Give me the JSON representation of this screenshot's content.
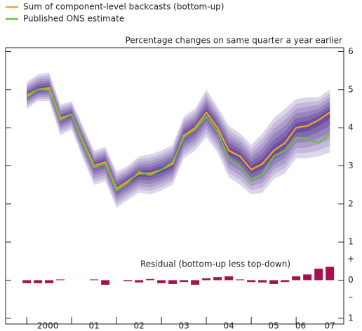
{
  "chart_data": {
    "type": "fan",
    "subtitle": "Percentage changes on same quarter a year earlier",
    "annotation": "Residual (bottom-up less top-down)",
    "x": [
      2000.0,
      2000.25,
      2000.5,
      2000.75,
      2001.0,
      2001.25,
      2001.5,
      2001.75,
      2002.0,
      2002.25,
      2002.5,
      2002.75,
      2003.0,
      2003.25,
      2003.5,
      2003.75,
      2004.0,
      2004.25,
      2004.5,
      2004.75,
      2005.0,
      2005.25,
      2005.5,
      2005.75,
      2006.0,
      2006.25,
      2006.5,
      2006.75
    ],
    "xlim": [
      1999.53,
      2007.06
    ],
    "xticks": [
      {
        "value": 2000.47,
        "label": "2000"
      },
      {
        "value": 2001.5,
        "label": "01"
      },
      {
        "value": 2002.5,
        "label": "02"
      },
      {
        "value": 2003.5,
        "label": "03"
      },
      {
        "value": 2004.5,
        "label": "04"
      },
      {
        "value": 2005.5,
        "label": "05"
      },
      {
        "value": 2006.1,
        "label": "06"
      },
      {
        "value": 2006.75,
        "label": "07"
      }
    ],
    "x_tick_marks": [
      2000,
      2001,
      2002,
      2003,
      2004,
      2005,
      2006
    ],
    "ylim": [
      -1.15,
      6.1
    ],
    "yticks": [
      6,
      5,
      4,
      3,
      2,
      1,
      0,
      {
        "value": -1,
        "label": "1"
      }
    ],
    "y_sign_labels": [
      {
        "value": 0.55,
        "label": "+"
      },
      {
        "value": -0.45,
        "label": "–"
      }
    ],
    "fan": {
      "color_light": "#ddd5ec",
      "color_dark": "#6c4f9e",
      "upper": [
        5.2,
        5.4,
        5.45,
        4.6,
        4.7,
        4.05,
        3.4,
        3.5,
        2.85,
        3.0,
        3.25,
        3.3,
        3.4,
        3.55,
        4.3,
        4.5,
        5.0,
        4.55,
        4.05,
        3.85,
        3.55,
        3.85,
        4.25,
        4.5,
        4.75,
        4.8,
        4.8,
        5.0
      ],
      "lower": [
        4.5,
        4.7,
        4.7,
        3.8,
        3.95,
        3.2,
        2.5,
        2.6,
        1.9,
        2.1,
        2.3,
        2.25,
        2.35,
        2.5,
        3.2,
        3.4,
        3.75,
        3.35,
        2.7,
        2.5,
        2.25,
        2.3,
        2.65,
        2.8,
        3.2,
        3.2,
        3.25,
        3.35
      ]
    },
    "series": [
      {
        "name": "Sum of component-level backcasts (bottom-up)",
        "color": "#f5a623",
        "values": [
          4.85,
          5.0,
          5.05,
          4.25,
          4.35,
          3.65,
          3.0,
          3.1,
          2.4,
          2.6,
          2.8,
          2.8,
          2.9,
          3.05,
          3.8,
          4.0,
          4.4,
          4.0,
          3.4,
          3.25,
          2.9,
          3.05,
          3.4,
          3.6,
          4.0,
          4.05,
          4.2,
          4.4
        ]
      },
      {
        "name": "Published ONS estimate",
        "color": "#6cbd45",
        "values": [
          4.8,
          5.0,
          5.0,
          4.2,
          4.35,
          3.6,
          2.95,
          3.05,
          2.35,
          2.55,
          2.85,
          2.75,
          2.9,
          3.1,
          3.75,
          3.95,
          4.3,
          3.9,
          3.2,
          3.0,
          2.6,
          2.8,
          3.25,
          3.4,
          3.75,
          3.7,
          3.6,
          3.85
        ]
      }
    ],
    "residual": {
      "color": "#a5124b",
      "values": [
        -0.08,
        -0.08,
        -0.08,
        0.02,
        0,
        0,
        0.02,
        -0.12,
        0,
        -0.03,
        -0.06,
        0.03,
        -0.08,
        -0.1,
        -0.05,
        -0.12,
        0.05,
        0.08,
        0.1,
        0.02,
        -0.05,
        -0.06,
        -0.1,
        -0.05,
        0.1,
        0.15,
        0.3,
        0.35
      ]
    }
  }
}
